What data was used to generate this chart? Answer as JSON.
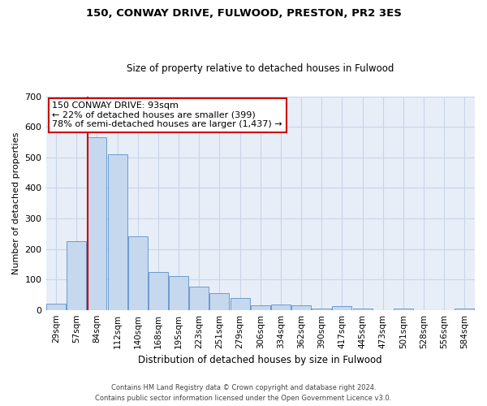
{
  "title": "150, CONWAY DRIVE, FULWOOD, PRESTON, PR2 3ES",
  "subtitle": "Size of property relative to detached houses in Fulwood",
  "xlabel": "Distribution of detached houses by size in Fulwood",
  "ylabel": "Number of detached properties",
  "bar_categories": [
    "29sqm",
    "57sqm",
    "84sqm",
    "112sqm",
    "140sqm",
    "168sqm",
    "195sqm",
    "223sqm",
    "251sqm",
    "279sqm",
    "306sqm",
    "334sqm",
    "362sqm",
    "390sqm",
    "417sqm",
    "445sqm",
    "473sqm",
    "501sqm",
    "528sqm",
    "556sqm",
    "584sqm"
  ],
  "bar_values": [
    20,
    225,
    565,
    510,
    240,
    125,
    110,
    75,
    55,
    40,
    15,
    18,
    15,
    5,
    12,
    5,
    0,
    5,
    0,
    0,
    5
  ],
  "bar_color": "#c5d8ee",
  "bar_edge_color": "#5b8fc9",
  "annotation_title": "150 CONWAY DRIVE: 93sqm",
  "annotation_line1": "← 22% of detached houses are smaller (399)",
  "annotation_line2": "78% of semi-detached houses are larger (1,437) →",
  "annotation_box_color": "#ffffff",
  "annotation_box_edge": "#cc0000",
  "red_line_color": "#cc0000",
  "grid_color": "#c8d4e8",
  "background_color": "#e8eef8",
  "ylim": [
    0,
    700
  ],
  "yticks": [
    0,
    100,
    200,
    300,
    400,
    500,
    600,
    700
  ],
  "red_line_index": 2,
  "footer_line1": "Contains HM Land Registry data © Crown copyright and database right 2024.",
  "footer_line2": "Contains public sector information licensed under the Open Government Licence v3.0."
}
